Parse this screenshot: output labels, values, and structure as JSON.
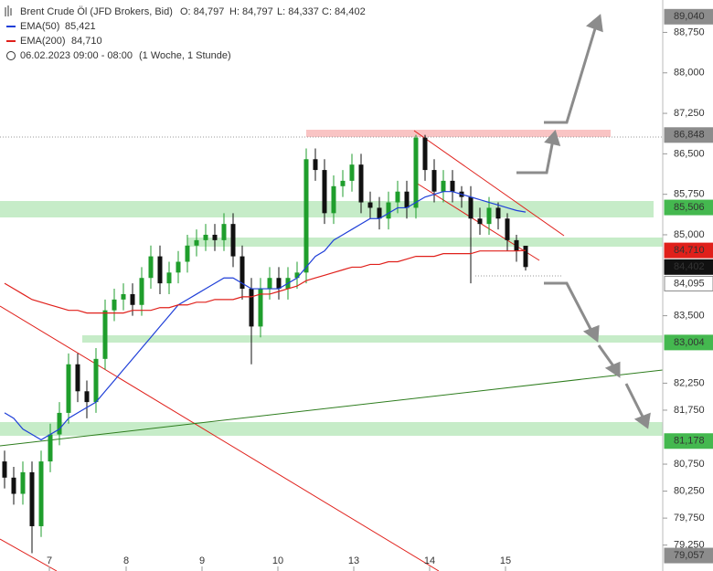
{
  "chart_data": {
    "type": "candlestick",
    "title": "Brent Crude Öl (JFD Brokers, Bid)",
    "ohlc_text": [
      "O: 84,797",
      "H: 84,797",
      "L: 84,337",
      "C: 84,402"
    ],
    "date_text": "06.02.2023 09:00 - 08:00",
    "period_text": "(1 Woche, 1 Stunde)",
    "up_color": "#1f9e2c",
    "down_color": "#111111",
    "candles": [
      [
        80.8,
        81.0,
        80.3,
        80.5
      ],
      [
        80.5,
        80.7,
        80.0,
        80.2
      ],
      [
        80.2,
        80.8,
        80.0,
        80.6
      ],
      [
        80.6,
        80.8,
        79.1,
        79.6
      ],
      [
        79.6,
        81.0,
        79.4,
        80.8
      ],
      [
        80.8,
        81.5,
        80.6,
        81.3
      ],
      [
        81.3,
        81.9,
        81.1,
        81.7
      ],
      [
        81.7,
        82.8,
        81.5,
        82.6
      ],
      [
        82.6,
        82.8,
        81.9,
        82.1
      ],
      [
        82.1,
        82.3,
        81.6,
        81.9
      ],
      [
        81.9,
        82.9,
        81.7,
        82.7
      ],
      [
        82.7,
        83.8,
        82.5,
        83.6
      ],
      [
        83.6,
        84.0,
        83.4,
        83.8
      ],
      [
        83.8,
        84.1,
        83.6,
        83.9
      ],
      [
        83.9,
        84.1,
        83.5,
        83.7
      ],
      [
        83.7,
        84.4,
        83.5,
        84.2
      ],
      [
        84.2,
        84.8,
        84.0,
        84.6
      ],
      [
        84.6,
        84.8,
        83.9,
        84.1
      ],
      [
        84.1,
        84.5,
        83.9,
        84.3
      ],
      [
        84.3,
        84.7,
        84.1,
        84.5
      ],
      [
        84.5,
        85.0,
        84.3,
        84.8
      ],
      [
        84.8,
        85.1,
        84.6,
        84.9
      ],
      [
        84.9,
        85.2,
        84.7,
        85.0
      ],
      [
        85.0,
        85.2,
        84.7,
        84.9
      ],
      [
        84.9,
        85.4,
        84.7,
        85.2
      ],
      [
        85.2,
        85.4,
        84.4,
        84.6
      ],
      [
        84.6,
        84.8,
        83.8,
        84.0
      ],
      [
        84.0,
        84.2,
        82.6,
        83.3
      ],
      [
        83.3,
        84.2,
        83.1,
        84.0
      ],
      [
        84.0,
        84.4,
        83.8,
        84.2
      ],
      [
        84.2,
        84.4,
        83.8,
        84.0
      ],
      [
        84.0,
        84.4,
        83.8,
        84.2
      ],
      [
        84.2,
        84.5,
        84.0,
        84.3
      ],
      [
        84.3,
        86.6,
        84.1,
        86.4
      ],
      [
        86.4,
        86.6,
        86.0,
        86.2
      ],
      [
        86.2,
        86.4,
        85.2,
        85.4
      ],
      [
        85.4,
        86.1,
        85.2,
        85.9
      ],
      [
        85.9,
        86.2,
        85.7,
        86.0
      ],
      [
        86.0,
        86.5,
        85.8,
        86.3
      ],
      [
        86.3,
        86.5,
        85.4,
        85.6
      ],
      [
        85.6,
        85.8,
        85.3,
        85.5
      ],
      [
        85.5,
        85.7,
        85.1,
        85.3
      ],
      [
        85.3,
        85.8,
        85.1,
        85.6
      ],
      [
        85.6,
        86.0,
        85.4,
        85.8
      ],
      [
        85.8,
        86.0,
        85.3,
        85.5
      ],
      [
        85.5,
        86.85,
        85.3,
        86.8
      ],
      [
        86.8,
        86.85,
        86.0,
        86.2
      ],
      [
        86.2,
        86.4,
        85.6,
        85.8
      ],
      [
        85.8,
        86.2,
        85.6,
        86.0
      ],
      [
        86.0,
        86.2,
        85.6,
        85.8
      ],
      [
        85.8,
        85.9,
        85.5,
        85.7
      ],
      [
        85.7,
        85.9,
        84.1,
        85.3
      ],
      [
        85.3,
        85.5,
        85.0,
        85.2
      ],
      [
        85.2,
        85.7,
        85.0,
        85.5
      ],
      [
        85.5,
        85.6,
        85.1,
        85.3
      ],
      [
        85.3,
        85.4,
        84.7,
        84.9
      ],
      [
        84.9,
        85.0,
        84.5,
        84.7
      ],
      [
        84.797,
        84.797,
        84.337,
        84.402
      ]
    ],
    "series": [
      {
        "name": "EMA(50)",
        "value_label": "85,421",
        "color": "#1f3fd8",
        "values": [
          81.7,
          81.6,
          81.4,
          81.3,
          81.2,
          81.3,
          81.4,
          81.6,
          81.7,
          81.8,
          81.9,
          82.1,
          82.3,
          82.5,
          82.7,
          82.9,
          83.1,
          83.3,
          83.5,
          83.7,
          83.8,
          83.9,
          84.0,
          84.1,
          84.2,
          84.2,
          84.1,
          84.0,
          84.0,
          84.0,
          84.0,
          84.1,
          84.2,
          84.4,
          84.6,
          84.7,
          84.9,
          85.0,
          85.1,
          85.2,
          85.3,
          85.3,
          85.4,
          85.5,
          85.5,
          85.6,
          85.7,
          85.75,
          85.8,
          85.8,
          85.75,
          85.7,
          85.65,
          85.6,
          85.55,
          85.5,
          85.45,
          85.421
        ]
      },
      {
        "name": "EMA(200)",
        "value_label": "84,710",
        "color": "#e0201b",
        "values": [
          84.1,
          84.0,
          83.9,
          83.8,
          83.75,
          83.7,
          83.65,
          83.6,
          83.6,
          83.55,
          83.55,
          83.55,
          83.55,
          83.55,
          83.6,
          83.6,
          83.6,
          83.65,
          83.65,
          83.7,
          83.7,
          83.75,
          83.75,
          83.8,
          83.8,
          83.8,
          83.85,
          83.85,
          83.9,
          83.9,
          83.95,
          84.0,
          84.05,
          84.15,
          84.2,
          84.25,
          84.3,
          84.35,
          84.4,
          84.4,
          84.45,
          84.45,
          84.5,
          84.5,
          84.55,
          84.6,
          84.6,
          84.6,
          84.65,
          84.65,
          84.65,
          84.65,
          84.7,
          84.7,
          84.7,
          84.7,
          84.7,
          84.71
        ]
      }
    ],
    "ylim": [
      78.77,
      89.35
    ],
    "yticks": [
      {
        "value": 88.75,
        "label": "88,750"
      },
      {
        "value": 88.0,
        "label": "88,000"
      },
      {
        "value": 87.25,
        "label": "87,250"
      },
      {
        "value": 86.5,
        "label": "86,500"
      },
      {
        "value": 85.75,
        "label": "85,750"
      },
      {
        "value": 85.0,
        "label": "85,000"
      },
      {
        "value": 83.5,
        "label": "83,500"
      },
      {
        "value": 82.25,
        "label": "82,250"
      },
      {
        "value": 81.75,
        "label": "81,750"
      },
      {
        "value": 80.75,
        "label": "80,750"
      },
      {
        "value": 80.25,
        "label": "80,250"
      },
      {
        "value": 79.75,
        "label": "79,750"
      },
      {
        "value": 79.25,
        "label": "79,250"
      }
    ],
    "xticks": [
      {
        "value": 4.9,
        "label": "7"
      },
      {
        "value": 13.3,
        "label": "8"
      },
      {
        "value": 21.6,
        "label": "9"
      },
      {
        "value": 29.9,
        "label": "10"
      },
      {
        "value": 38.2,
        "label": "13"
      },
      {
        "value": 46.5,
        "label": "14"
      },
      {
        "value": 54.8,
        "label": "15"
      }
    ],
    "price_tags": [
      {
        "value": 89.04,
        "label": "89,040",
        "color": "#8c8c8c",
        "text_color": "#ffffff"
      },
      {
        "value": 86.848,
        "label": "86,848",
        "color": "#8c8c8c",
        "text_color": "#ffffff"
      },
      {
        "value": 85.506,
        "label": "85,506",
        "color": "#44b84f",
        "text_color": "#ffffff"
      },
      {
        "value": 84.71,
        "label": "84,710",
        "color": "#e0201b",
        "text_color": "#ffffff"
      },
      {
        "value": 84.402,
        "label": "84,402",
        "color": "#111111",
        "text_color": "#ffffff"
      },
      {
        "value": 84.095,
        "label": "84,095",
        "color": "#ffffff",
        "text_color": "#111111"
      },
      {
        "value": 83.004,
        "label": "83,004",
        "color": "#44b84f",
        "text_color": "#ffffff"
      },
      {
        "value": 81.178,
        "label": "81,178",
        "color": "#44b84f",
        "text_color": "#ffffff"
      },
      {
        "value": 79.057,
        "label": "79,057",
        "color": "#8c8c8c",
        "text_color": "#ffffff"
      }
    ]
  }
}
